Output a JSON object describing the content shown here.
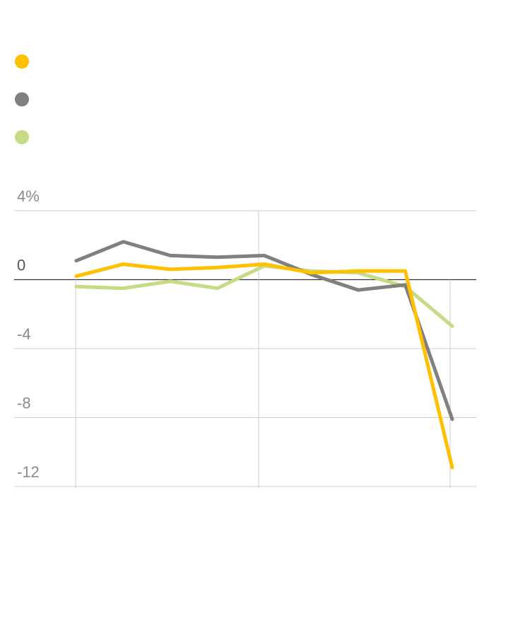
{
  "chart_data": {
    "type": "line",
    "title": "",
    "xlabel": "",
    "ylabel": "",
    "ylim": [
      -12,
      4
    ],
    "yticks": [
      {
        "value": 4,
        "label": "4%"
      },
      {
        "value": 0,
        "label": "0"
      },
      {
        "value": -4,
        "label": "-4"
      },
      {
        "value": -8,
        "label": "-8"
      },
      {
        "value": -12,
        "label": "-12"
      }
    ],
    "x": [
      1,
      2,
      3,
      4,
      5,
      6,
      7,
      8,
      9
    ],
    "xlim": [
      1,
      9
    ],
    "x_gridlines": [
      1,
      5,
      9
    ],
    "grid": true,
    "legend": "top-left",
    "series": [
      {
        "color": "#FFC000",
        "values": [
          0.2,
          0.9,
          0.6,
          0.7,
          0.9,
          0.4,
          0.5,
          0.5,
          -10.9
        ]
      },
      {
        "color": "#808080",
        "values": [
          1.1,
          2.2,
          1.4,
          1.3,
          1.4,
          0.3,
          -0.6,
          -0.3,
          -8.1
        ]
      },
      {
        "color": "#C5DB86",
        "values": [
          -0.4,
          -0.5,
          -0.1,
          -0.5,
          0.8,
          0.5,
          0.4,
          -0.4,
          -2.7
        ]
      }
    ]
  }
}
